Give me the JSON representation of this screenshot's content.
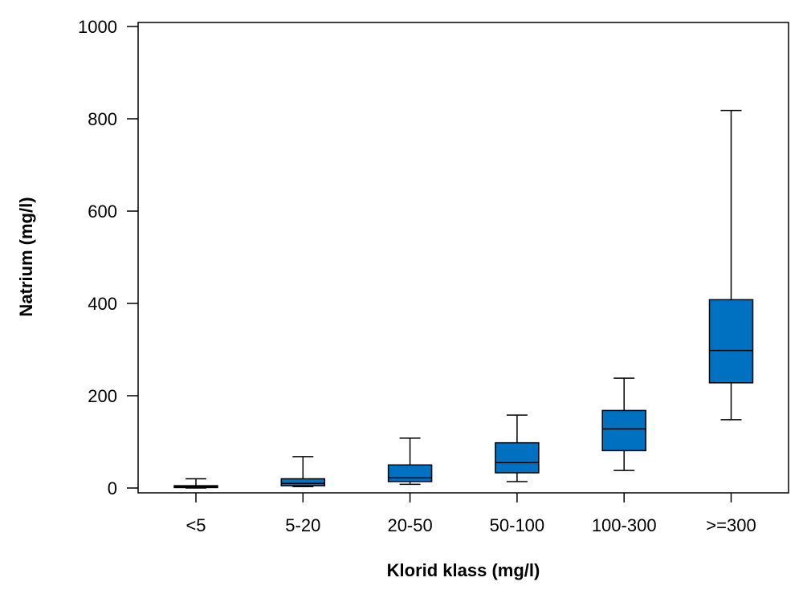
{
  "chart_data": {
    "type": "boxplot",
    "title": "",
    "xlabel": "Klorid klass (mg/l)",
    "ylabel": "Natrium (mg/l)",
    "ylim": [
      0,
      1000
    ],
    "yticks": [
      0,
      200,
      400,
      600,
      800,
      1000
    ],
    "grid": false,
    "legend": "none",
    "box_color": "#0070c0",
    "categories": [
      "<5",
      "5-20",
      "20-50",
      "50-100",
      "100-300",
      ">=300"
    ],
    "boxes": [
      {
        "category": "<5",
        "whisker_low": 0,
        "q1": 1,
        "median": 3,
        "q3": 5,
        "whisker_high": 20
      },
      {
        "category": "5-20",
        "whisker_low": 3,
        "q1": 5,
        "median": 10,
        "q3": 20,
        "whisker_high": 68
      },
      {
        "category": "20-50",
        "whisker_low": 8,
        "q1": 14,
        "median": 22,
        "q3": 50,
        "whisker_high": 108
      },
      {
        "category": "50-100",
        "whisker_low": 14,
        "q1": 33,
        "median": 55,
        "q3": 98,
        "whisker_high": 158
      },
      {
        "category": "100-300",
        "whisker_low": 38,
        "q1": 81,
        "median": 128,
        "q3": 168,
        "whisker_high": 238
      },
      {
        "category": ">=300",
        "whisker_low": 148,
        "q1": 228,
        "median": 298,
        "q3": 408,
        "whisker_high": 818
      }
    ]
  }
}
